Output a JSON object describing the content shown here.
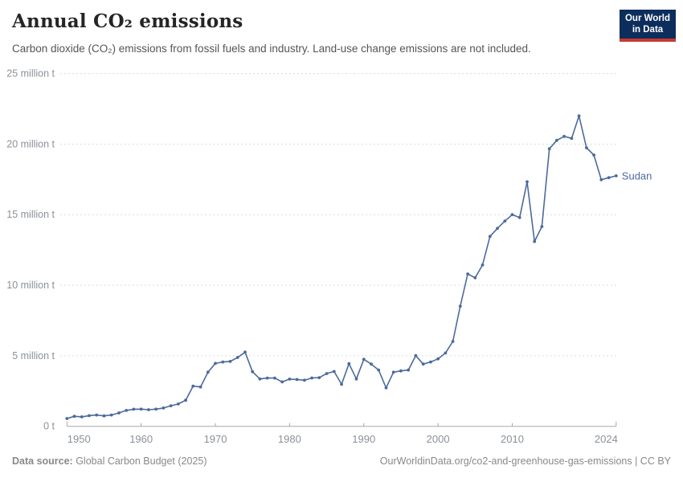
{
  "header": {
    "title": "Annual CO₂ emissions",
    "subtitle": "Carbon dioxide (CO₂) emissions from fossil fuels and industry. Land-use change emissions are not included.",
    "logo": {
      "line1": "Our World",
      "line2": "in Data"
    }
  },
  "chart_data": {
    "type": "line",
    "title": "Annual CO₂ emissions",
    "entity": "Sudan",
    "unit": "million tonnes",
    "xlim": [
      1950,
      2024
    ],
    "ylim": [
      0,
      25
    ],
    "grid": "horizontal dashed",
    "legend_position": "end-of-line label",
    "x_ticks": [
      1950,
      1960,
      1970,
      1980,
      1990,
      2000,
      2010,
      2024
    ],
    "y_ticks": [
      {
        "value": 0,
        "label": "0 t"
      },
      {
        "value": 5,
        "label": "5 million t"
      },
      {
        "value": 10,
        "label": "10 million t"
      },
      {
        "value": 15,
        "label": "15 million t"
      },
      {
        "value": 20,
        "label": "20 million t"
      },
      {
        "value": 25,
        "label": "25 million t"
      }
    ],
    "series": [
      {
        "name": "Sudan",
        "color": "#4c6a9c",
        "x": [
          1950,
          1951,
          1952,
          1953,
          1954,
          1955,
          1956,
          1957,
          1958,
          1959,
          1960,
          1961,
          1962,
          1963,
          1964,
          1965,
          1966,
          1967,
          1968,
          1969,
          1970,
          1971,
          1972,
          1973,
          1974,
          1975,
          1976,
          1977,
          1978,
          1979,
          1980,
          1981,
          1982,
          1983,
          1984,
          1985,
          1986,
          1987,
          1988,
          1989,
          1990,
          1991,
          1992,
          1993,
          1994,
          1995,
          1996,
          1997,
          1998,
          1999,
          2000,
          2001,
          2002,
          2003,
          2004,
          2005,
          2006,
          2007,
          2008,
          2009,
          2010,
          2011,
          2012,
          2013,
          2014,
          2015,
          2016,
          2017,
          2018,
          2019,
          2020,
          2021,
          2022,
          2023,
          2024
        ],
        "values": [
          0.55,
          0.71,
          0.67,
          0.76,
          0.8,
          0.74,
          0.8,
          0.95,
          1.13,
          1.21,
          1.22,
          1.18,
          1.22,
          1.3,
          1.46,
          1.58,
          1.85,
          2.85,
          2.79,
          3.84,
          4.46,
          4.56,
          4.6,
          4.88,
          5.26,
          3.87,
          3.36,
          3.42,
          3.42,
          3.15,
          3.35,
          3.32,
          3.27,
          3.43,
          3.45,
          3.74,
          3.89,
          2.98,
          4.44,
          3.36,
          4.75,
          4.41,
          3.99,
          2.73,
          3.84,
          3.93,
          3.99,
          5.01,
          4.41,
          4.56,
          4.78,
          5.2,
          6.02,
          8.52,
          10.8,
          10.53,
          11.43,
          13.46,
          14.03,
          14.55,
          15.0,
          14.8,
          17.33,
          13.1,
          14.16,
          19.67,
          20.27,
          20.55,
          20.41,
          22.0,
          19.74,
          19.23,
          17.48,
          17.62,
          17.75
        ]
      }
    ]
  },
  "footer": {
    "source_label": "Data source:",
    "source_value": " Global Carbon Budget (2025)",
    "credit": "OurWorldinData.org/co2-and-greenhouse-gas-emissions | CC BY"
  },
  "colors": {
    "series_blue": "#4c6a9c",
    "grid_gray": "#dcdcdc",
    "axis_gray": "#a8a8a8",
    "tick_label_gray": "#8b9199",
    "logo_navy": "#0d2e5c",
    "logo_red": "#c43b33"
  }
}
